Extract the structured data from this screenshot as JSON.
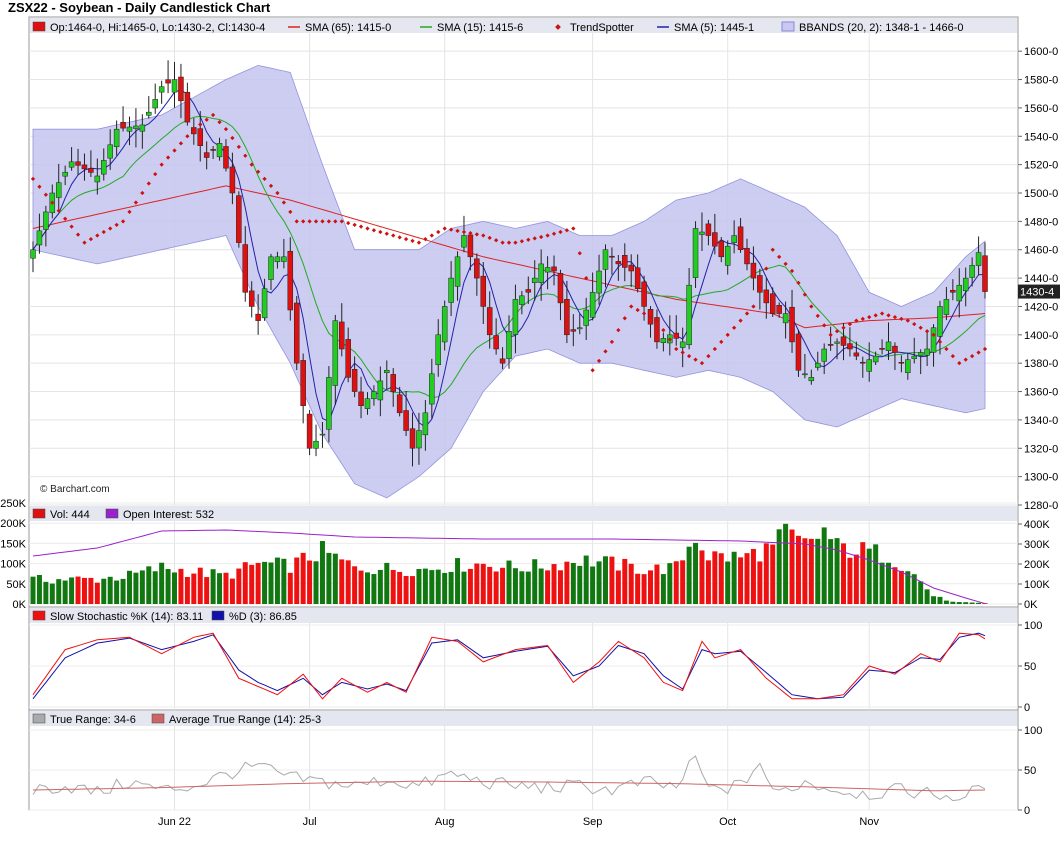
{
  "title": "ZSX22 - Soybean - Daily Candlestick Chart",
  "watermark": "© Barchart.com",
  "last_price_label": "1430-4",
  "colors": {
    "up": "#22cc22",
    "down": "#dd1111",
    "sma65": "#dd2222",
    "sma15": "#22aa22",
    "sma5": "#2222aa",
    "trendspotter": "#cc1111",
    "bbands_fill": "#c8c8f0",
    "bbands_line": "#8888dd",
    "oi": "#9922cc",
    "stoch_k": "#ee1111",
    "stoch_d": "#1111aa",
    "tr": "#aaaaaa",
    "atr": "#cc6666",
    "panel_header": "#e4e6f0"
  },
  "panels": {
    "price": {
      "legend": [
        {
          "label": "Op:1464-0, Hi:1465-0, Lo:1430-2, Cl:1430-4",
          "swatch": "down"
        },
        {
          "label": "SMA (65): 1415-0",
          "swatch": "sma65"
        },
        {
          "label": "SMA (15): 1415-6",
          "swatch": "sma15"
        },
        {
          "label": "TrendSpotter",
          "swatch": "trendspotter"
        },
        {
          "label": "SMA (5): 1445-1",
          "swatch": "sma5"
        },
        {
          "label": "BBANDS (20, 2): 1348-1 - 1466-0",
          "swatch": "bbands_fill"
        }
      ],
      "ticks": [
        "1600-0",
        "1580-0",
        "1560-0",
        "1540-0",
        "1520-0",
        "1500-0",
        "1480-0",
        "1460-0",
        "1440-0",
        "1420-0",
        "1400-0",
        "1380-0",
        "1360-0",
        "1340-0",
        "1320-0",
        "1300-0",
        "1280-0"
      ]
    },
    "volume": {
      "legend": [
        {
          "label": "Vol: 444",
          "swatch": "down"
        },
        {
          "label": "Open Interest: 532",
          "swatch": "oi"
        }
      ],
      "left_ticks": [
        "250K",
        "200K",
        "150K",
        "100K",
        "50K",
        "0K"
      ],
      "right_ticks": [
        "400K",
        "300K",
        "200K",
        "100K",
        "0K"
      ]
    },
    "stoch": {
      "legend": [
        {
          "label": "Slow Stochastic %K (14): 83.11",
          "swatch": "stoch_k"
        },
        {
          "label": "%D (3): 86.85",
          "swatch": "stoch_d"
        }
      ],
      "ticks": [
        "100",
        "50",
        "0"
      ]
    },
    "range": {
      "legend": [
        {
          "label": "True Range: 34-6",
          "swatch": "tr"
        },
        {
          "label": "Average True Range (14): 25-3",
          "swatch": "atr"
        }
      ],
      "ticks": [
        "100",
        "50",
        "0"
      ]
    }
  },
  "x_labels": [
    "Jun 22",
    "Jul",
    "Aug",
    "Sep",
    "Oct",
    "Nov"
  ],
  "chart_data": {
    "type": "candlestick",
    "title": "ZSX22 - Soybean - Daily Candlestick Chart",
    "price_axis": {
      "min": 1280,
      "max": 1610,
      "ticks": [
        1600,
        1580,
        1560,
        1540,
        1520,
        1500,
        1480,
        1460,
        1440,
        1420,
        1400,
        1380,
        1360,
        1340,
        1320,
        1300,
        1280
      ]
    },
    "price_anchors": [
      [
        0,
        1460
      ],
      [
        3,
        1500
      ],
      [
        6,
        1522
      ],
      [
        10,
        1512
      ],
      [
        13,
        1545
      ],
      [
        17,
        1548
      ],
      [
        20,
        1575
      ],
      [
        22,
        1580
      ],
      [
        24,
        1550
      ],
      [
        27,
        1525
      ],
      [
        29,
        1535
      ],
      [
        31,
        1500
      ],
      [
        33,
        1430
      ],
      [
        35,
        1410
      ],
      [
        37,
        1455
      ],
      [
        39,
        1455
      ],
      [
        41,
        1380
      ],
      [
        43,
        1320
      ],
      [
        45,
        1330
      ],
      [
        47,
        1410
      ],
      [
        49,
        1370
      ],
      [
        51,
        1350
      ],
      [
        53,
        1360
      ],
      [
        55,
        1375
      ],
      [
        57,
        1345
      ],
      [
        59,
        1320
      ],
      [
        61,
        1345
      ],
      [
        63,
        1400
      ],
      [
        65,
        1440
      ],
      [
        67,
        1470
      ],
      [
        69,
        1440
      ],
      [
        71,
        1400
      ],
      [
        73,
        1380
      ],
      [
        75,
        1425
      ],
      [
        77,
        1430
      ],
      [
        79,
        1450
      ],
      [
        81,
        1445
      ],
      [
        83,
        1400
      ],
      [
        85,
        1405
      ],
      [
        87,
        1430
      ],
      [
        89,
        1460
      ],
      [
        91,
        1450
      ],
      [
        93,
        1445
      ],
      [
        95,
        1420
      ],
      [
        97,
        1395
      ],
      [
        99,
        1400
      ],
      [
        101,
        1395
      ],
      [
        103,
        1475
      ],
      [
        105,
        1470
      ],
      [
        107,
        1455
      ],
      [
        109,
        1470
      ],
      [
        111,
        1450
      ],
      [
        113,
        1430
      ],
      [
        115,
        1415
      ],
      [
        117,
        1415
      ],
      [
        119,
        1375
      ],
      [
        121,
        1370
      ],
      [
        123,
        1390
      ],
      [
        125,
        1395
      ],
      [
        127,
        1390
      ],
      [
        129,
        1380
      ],
      [
        131,
        1385
      ],
      [
        133,
        1395
      ],
      [
        135,
        1380
      ],
      [
        137,
        1385
      ],
      [
        139,
        1390
      ],
      [
        141,
        1420
      ],
      [
        143,
        1430
      ],
      [
        145,
        1440
      ],
      [
        147,
        1458
      ],
      [
        148,
        1430.5
      ]
    ],
    "sma65_anchors": [
      [
        0,
        1475
      ],
      [
        20,
        1495
      ],
      [
        30,
        1505
      ],
      [
        40,
        1495
      ],
      [
        55,
        1475
      ],
      [
        70,
        1455
      ],
      [
        85,
        1440
      ],
      [
        100,
        1425
      ],
      [
        115,
        1415
      ],
      [
        120,
        1405
      ],
      [
        130,
        1410
      ],
      [
        140,
        1412
      ],
      [
        148,
        1415
      ]
    ],
    "bband_upper_anchors": [
      [
        0,
        1545
      ],
      [
        10,
        1545
      ],
      [
        20,
        1555
      ],
      [
        30,
        1580
      ],
      [
        35,
        1590
      ],
      [
        40,
        1585
      ],
      [
        45,
        1520
      ],
      [
        50,
        1460
      ],
      [
        60,
        1460
      ],
      [
        65,
        1475
      ],
      [
        70,
        1480
      ],
      [
        75,
        1475
      ],
      [
        80,
        1480
      ],
      [
        85,
        1470
      ],
      [
        90,
        1470
      ],
      [
        95,
        1480
      ],
      [
        100,
        1495
      ],
      [
        105,
        1500
      ],
      [
        110,
        1510
      ],
      [
        115,
        1500
      ],
      [
        120,
        1490
      ],
      [
        125,
        1470
      ],
      [
        130,
        1430
      ],
      [
        135,
        1420
      ],
      [
        140,
        1430
      ],
      [
        145,
        1455
      ],
      [
        148,
        1466
      ]
    ],
    "bband_lower_anchors": [
      [
        0,
        1460
      ],
      [
        10,
        1450
      ],
      [
        20,
        1460
      ],
      [
        30,
        1470
      ],
      [
        35,
        1420
      ],
      [
        40,
        1380
      ],
      [
        45,
        1330
      ],
      [
        50,
        1295
      ],
      [
        55,
        1285
      ],
      [
        60,
        1300
      ],
      [
        65,
        1320
      ],
      [
        70,
        1360
      ],
      [
        75,
        1385
      ],
      [
        80,
        1390
      ],
      [
        85,
        1380
      ],
      [
        90,
        1380
      ],
      [
        95,
        1375
      ],
      [
        100,
        1370
      ],
      [
        105,
        1375
      ],
      [
        110,
        1370
      ],
      [
        115,
        1360
      ],
      [
        120,
        1340
      ],
      [
        125,
        1335
      ],
      [
        130,
        1345
      ],
      [
        135,
        1355
      ],
      [
        140,
        1350
      ],
      [
        145,
        1345
      ],
      [
        148,
        1348
      ]
    ],
    "trendspotter_anchors": [
      [
        0,
        1510
      ],
      [
        8,
        1465
      ],
      [
        14,
        1480
      ],
      [
        20,
        1520
      ],
      [
        25,
        1545
      ],
      [
        28,
        1555
      ],
      [
        30,
        1545
      ],
      [
        34,
        1520
      ],
      [
        38,
        1500
      ],
      [
        41,
        1480
      ],
      [
        45,
        1480
      ],
      [
        48,
        1480
      ],
      [
        52,
        1475
      ],
      [
        56,
        1470
      ],
      [
        60,
        1465
      ],
      [
        64,
        1475
      ],
      [
        70,
        1470
      ],
      [
        73,
        1465
      ],
      [
        75,
        1465
      ],
      [
        80,
        1470
      ],
      [
        84,
        1475
      ],
      [
        86,
        1440
      ],
      [
        87,
        1375
      ],
      [
        90,
        1395
      ],
      [
        93,
        1420
      ],
      [
        97,
        1410
      ],
      [
        100,
        1390
      ],
      [
        104,
        1380
      ],
      [
        108,
        1400
      ],
      [
        112,
        1420
      ],
      [
        115,
        1460
      ],
      [
        118,
        1445
      ],
      [
        121,
        1420
      ],
      [
        124,
        1400
      ],
      [
        128,
        1410
      ],
      [
        132,
        1415
      ],
      [
        136,
        1410
      ],
      [
        140,
        1400
      ],
      [
        144,
        1380
      ],
      [
        148,
        1390
      ]
    ],
    "volume_axis": {
      "min": 0,
      "max": 250000
    },
    "open_interest_axis": {
      "min": 0,
      "max": 450000
    },
    "volume_anchors": [
      [
        0,
        60000
      ],
      [
        10,
        62000
      ],
      [
        15,
        70000
      ],
      [
        20,
        90000
      ],
      [
        25,
        80000
      ],
      [
        30,
        70000
      ],
      [
        35,
        100000
      ],
      [
        40,
        95000
      ],
      [
        45,
        130000
      ],
      [
        50,
        90000
      ],
      [
        55,
        88000
      ],
      [
        60,
        85000
      ],
      [
        65,
        95000
      ],
      [
        70,
        100000
      ],
      [
        75,
        90000
      ],
      [
        80,
        95000
      ],
      [
        85,
        110000
      ],
      [
        90,
        100000
      ],
      [
        95,
        85000
      ],
      [
        100,
        90000
      ],
      [
        103,
        170000
      ],
      [
        105,
        120000
      ],
      [
        110,
        115000
      ],
      [
        115,
        140000
      ],
      [
        117,
        175000
      ],
      [
        120,
        145000
      ],
      [
        123,
        180000
      ],
      [
        125,
        140000
      ],
      [
        130,
        130000
      ],
      [
        133,
        120000
      ],
      [
        136,
        90000
      ],
      [
        140,
        20000
      ],
      [
        143,
        5000
      ],
      [
        148,
        2000
      ]
    ],
    "open_interest_anchors": [
      [
        0,
        240000
      ],
      [
        10,
        280000
      ],
      [
        20,
        365000
      ],
      [
        30,
        370000
      ],
      [
        40,
        355000
      ],
      [
        50,
        335000
      ],
      [
        60,
        330000
      ],
      [
        70,
        325000
      ],
      [
        80,
        325000
      ],
      [
        90,
        325000
      ],
      [
        100,
        320000
      ],
      [
        110,
        315000
      ],
      [
        120,
        300000
      ],
      [
        125,
        270000
      ],
      [
        130,
        220000
      ],
      [
        135,
        160000
      ],
      [
        140,
        80000
      ],
      [
        145,
        30000
      ],
      [
        148,
        2000
      ]
    ],
    "stoch_axis": {
      "min": 0,
      "max": 100
    },
    "stoch_k_anchors": [
      [
        0,
        15
      ],
      [
        5,
        70
      ],
      [
        10,
        82
      ],
      [
        15,
        85
      ],
      [
        20,
        65
      ],
      [
        25,
        85
      ],
      [
        28,
        90
      ],
      [
        32,
        35
      ],
      [
        35,
        25
      ],
      [
        38,
        15
      ],
      [
        42,
        40
      ],
      [
        45,
        10
      ],
      [
        48,
        35
      ],
      [
        52,
        18
      ],
      [
        55,
        30
      ],
      [
        58,
        18
      ],
      [
        62,
        85
      ],
      [
        66,
        80
      ],
      [
        70,
        55
      ],
      [
        75,
        70
      ],
      [
        80,
        75
      ],
      [
        84,
        30
      ],
      [
        88,
        55
      ],
      [
        91,
        80
      ],
      [
        95,
        60
      ],
      [
        98,
        30
      ],
      [
        101,
        20
      ],
      [
        104,
        80
      ],
      [
        106,
        60
      ],
      [
        110,
        70
      ],
      [
        114,
        35
      ],
      [
        118,
        10
      ],
      [
        122,
        10
      ],
      [
        126,
        15
      ],
      [
        130,
        50
      ],
      [
        134,
        40
      ],
      [
        138,
        65
      ],
      [
        141,
        55
      ],
      [
        144,
        90
      ],
      [
        147,
        88
      ],
      [
        148,
        83
      ]
    ],
    "stoch_d_anchors": [
      [
        0,
        10
      ],
      [
        5,
        60
      ],
      [
        10,
        78
      ],
      [
        15,
        84
      ],
      [
        20,
        70
      ],
      [
        25,
        80
      ],
      [
        28,
        88
      ],
      [
        32,
        45
      ],
      [
        35,
        30
      ],
      [
        38,
        20
      ],
      [
        42,
        35
      ],
      [
        45,
        15
      ],
      [
        48,
        30
      ],
      [
        52,
        22
      ],
      [
        55,
        28
      ],
      [
        58,
        20
      ],
      [
        62,
        78
      ],
      [
        66,
        82
      ],
      [
        70,
        60
      ],
      [
        75,
        68
      ],
      [
        80,
        74
      ],
      [
        84,
        38
      ],
      [
        88,
        50
      ],
      [
        91,
        75
      ],
      [
        95,
        65
      ],
      [
        98,
        38
      ],
      [
        101,
        22
      ],
      [
        104,
        70
      ],
      [
        106,
        65
      ],
      [
        110,
        68
      ],
      [
        114,
        42
      ],
      [
        118,
        15
      ],
      [
        122,
        10
      ],
      [
        126,
        12
      ],
      [
        130,
        45
      ],
      [
        134,
        42
      ],
      [
        138,
        60
      ],
      [
        141,
        58
      ],
      [
        144,
        85
      ],
      [
        147,
        90
      ],
      [
        148,
        87
      ]
    ],
    "range_axis": {
      "min": 0,
      "max": 100
    },
    "true_range_anchors": [
      [
        0,
        25
      ],
      [
        5,
        30
      ],
      [
        10,
        22
      ],
      [
        15,
        35
      ],
      [
        20,
        25
      ],
      [
        25,
        30
      ],
      [
        30,
        45
      ],
      [
        35,
        55
      ],
      [
        40,
        40
      ],
      [
        45,
        35
      ],
      [
        50,
        30
      ],
      [
        55,
        38
      ],
      [
        60,
        30
      ],
      [
        65,
        45
      ],
      [
        70,
        35
      ],
      [
        75,
        30
      ],
      [
        80,
        28
      ],
      [
        85,
        30
      ],
      [
        90,
        25
      ],
      [
        95,
        35
      ],
      [
        100,
        28
      ],
      [
        103,
        65
      ],
      [
        105,
        25
      ],
      [
        110,
        30
      ],
      [
        113,
        60
      ],
      [
        115,
        20
      ],
      [
        120,
        35
      ],
      [
        125,
        25
      ],
      [
        130,
        20
      ],
      [
        135,
        25
      ],
      [
        140,
        20
      ],
      [
        145,
        15
      ],
      [
        148,
        35
      ]
    ],
    "atr_anchors": [
      [
        0,
        25
      ],
      [
        20,
        28
      ],
      [
        40,
        33
      ],
      [
        60,
        36
      ],
      [
        80,
        35
      ],
      [
        100,
        33
      ],
      [
        120,
        29
      ],
      [
        140,
        24
      ],
      [
        148,
        25
      ]
    ]
  }
}
